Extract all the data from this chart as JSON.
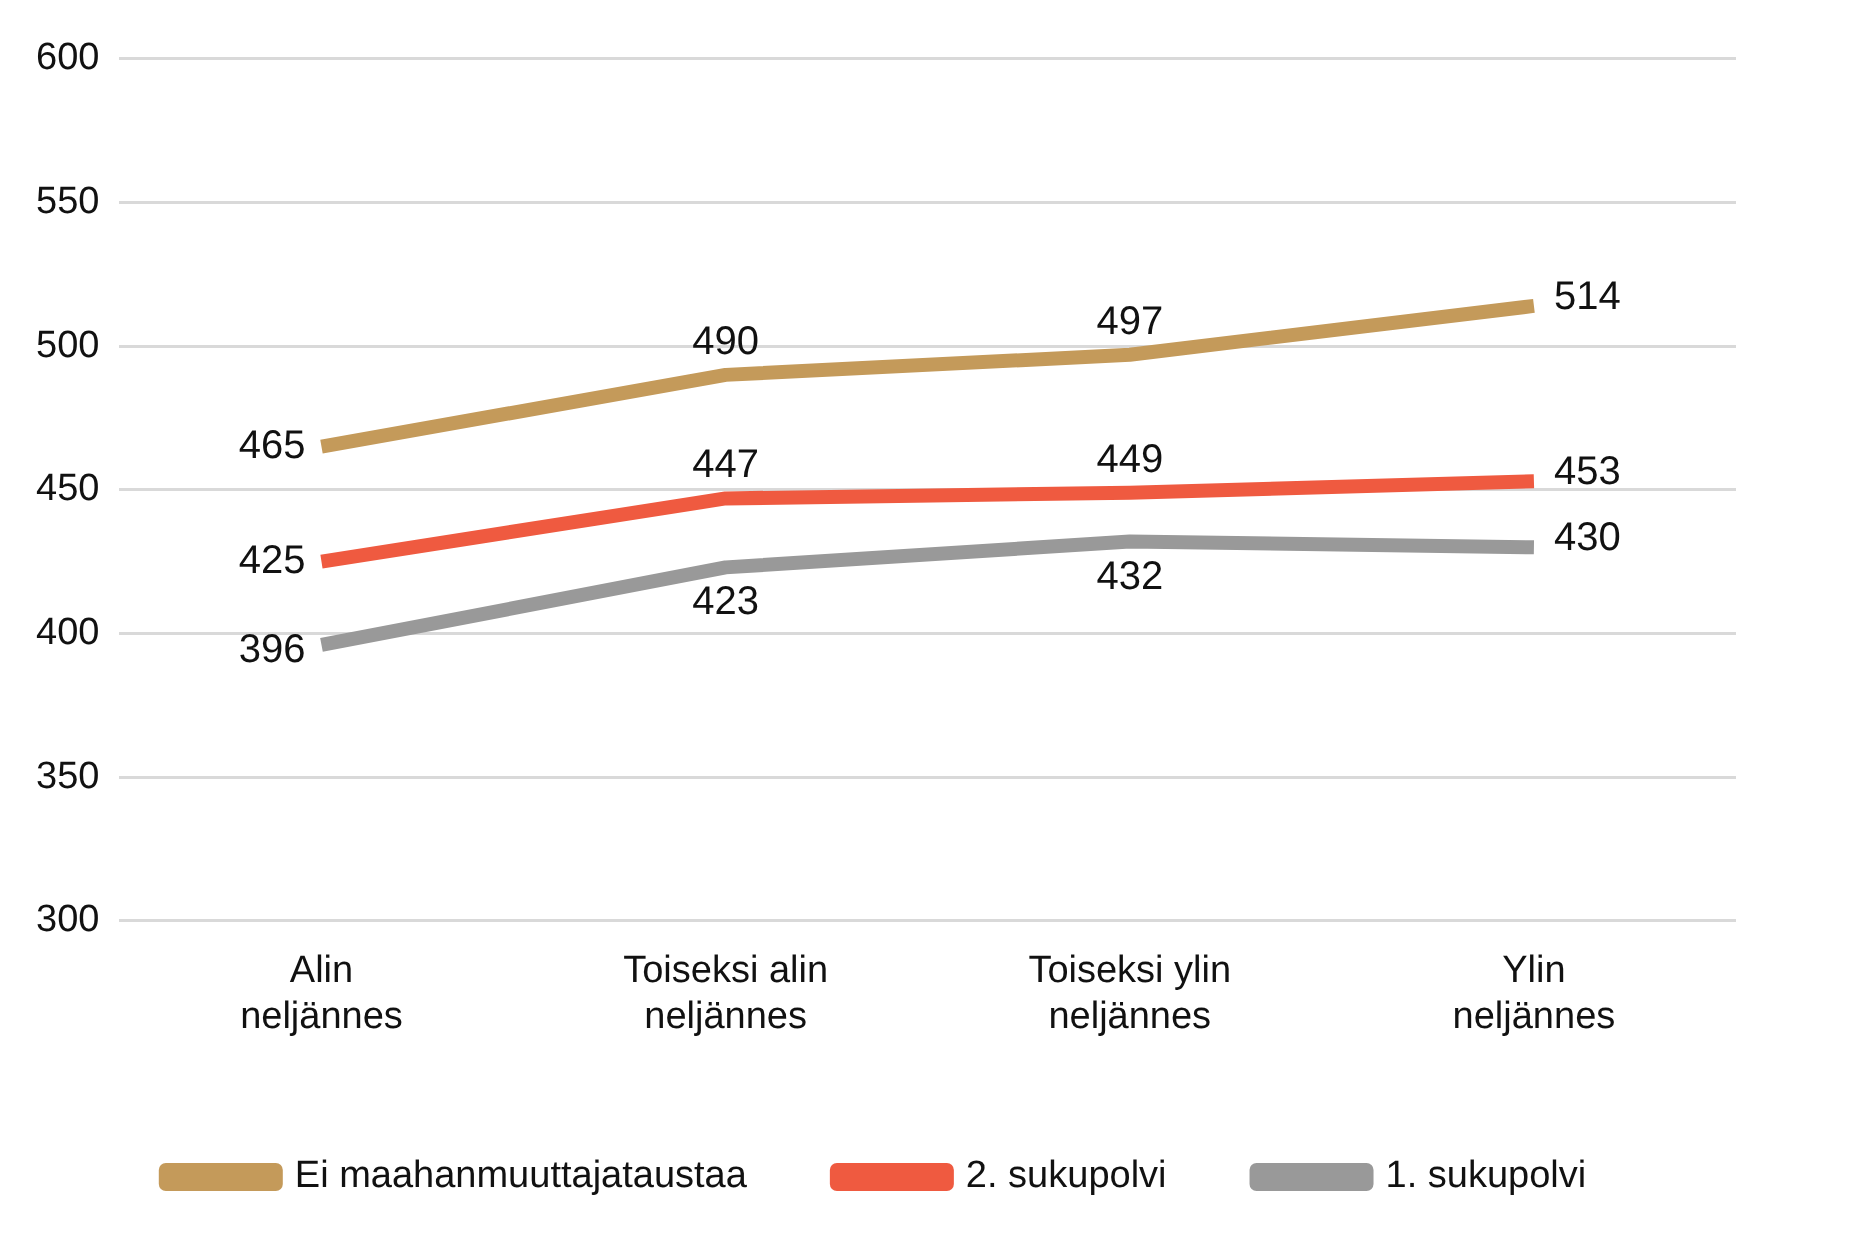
{
  "chart_data": {
    "type": "line",
    "categories": [
      "Alin neljännes",
      "Toiseksi alin neljännes",
      "Toiseksi ylin neljännes",
      "Ylin neljännes"
    ],
    "series": [
      {
        "name": "Ei maahanmuuttajataustaa",
        "color": "#c49a5a",
        "values": [
          465,
          490,
          497,
          514
        ]
      },
      {
        "name": "2. sukupolvi",
        "color": "#ef5a40",
        "values": [
          425,
          447,
          449,
          453
        ]
      },
      {
        "name": "1. sukupolvi",
        "color": "#999999",
        "values": [
          396,
          423,
          432,
          430
        ]
      }
    ],
    "ylim": [
      300,
      600
    ],
    "yticks": [
      300,
      350,
      400,
      450,
      500,
      550,
      600
    ],
    "grid": "y",
    "legend": "bottom",
    "data_labels": true,
    "marker": "none",
    "line_style": "solid"
  }
}
